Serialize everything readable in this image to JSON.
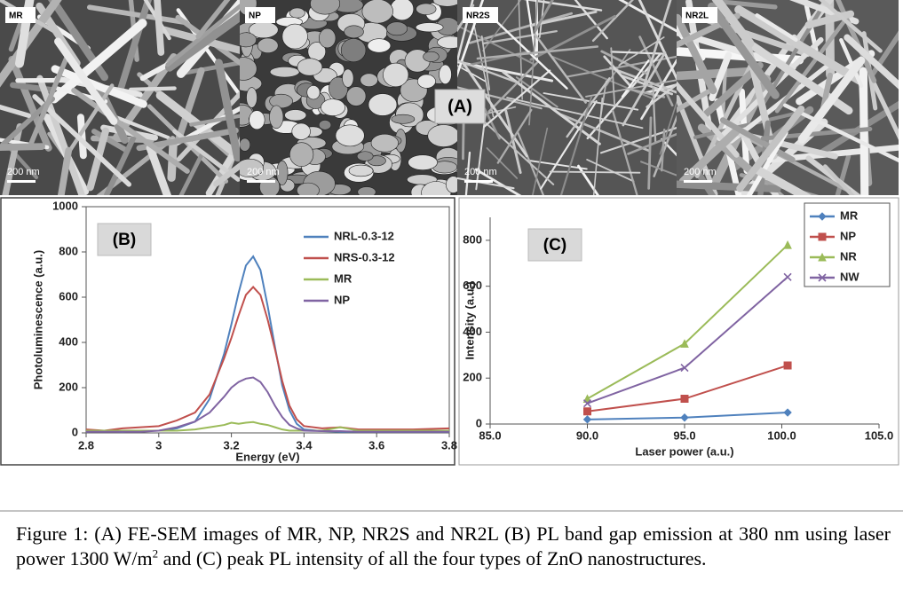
{
  "sem_images": [
    {
      "label": "MR",
      "scale_bar": "200 nm"
    },
    {
      "label": "NP",
      "scale_bar": "200 nm"
    },
    {
      "label": "NR2S",
      "scale_bar": "200 nm"
    },
    {
      "label": "NR2L",
      "scale_bar": "200 nm"
    }
  ],
  "panel_a_label": "(A)",
  "chart_data": [
    {
      "type": "line",
      "title": "(B)",
      "x_label": "Energy (eV)",
      "y_label": "Photoluminescence (a.u.)",
      "x": [
        2.8,
        2.85,
        2.9,
        2.95,
        3.0,
        3.05,
        3.1,
        3.14,
        3.18,
        3.2,
        3.22,
        3.24,
        3.26,
        3.28,
        3.3,
        3.32,
        3.34,
        3.36,
        3.38,
        3.4,
        3.45,
        3.5,
        3.55,
        3.6,
        3.7,
        3.8
      ],
      "series": [
        {
          "name": "NRL-0.3-12",
          "color": "#4f81bd",
          "values": [
            5,
            8,
            5,
            10,
            10,
            20,
            50,
            150,
            350,
            480,
            620,
            740,
            780,
            720,
            560,
            380,
            210,
            100,
            40,
            15,
            8,
            5,
            5,
            5,
            5,
            5
          ]
        },
        {
          "name": "NRS-0.3-12",
          "color": "#c0504d",
          "values": [
            15,
            10,
            20,
            25,
            30,
            55,
            90,
            170,
            330,
            420,
            520,
            610,
            645,
            610,
            500,
            370,
            230,
            120,
            60,
            30,
            20,
            25,
            15,
            15,
            15,
            20
          ]
        },
        {
          "name": "MR",
          "color": "#9bbb59",
          "values": [
            10,
            10,
            10,
            10,
            10,
            10,
            15,
            25,
            35,
            45,
            40,
            45,
            48,
            40,
            35,
            25,
            15,
            10,
            10,
            10,
            10,
            25,
            10,
            10,
            10,
            10
          ]
        },
        {
          "name": "NP",
          "color": "#8064a2",
          "values": [
            5,
            5,
            5,
            5,
            10,
            25,
            50,
            90,
            160,
            200,
            225,
            240,
            245,
            225,
            180,
            120,
            70,
            35,
            20,
            10,
            8,
            8,
            5,
            5,
            5,
            5
          ]
        }
      ],
      "xlim": [
        2.8,
        3.8
      ],
      "xticks": [
        2.8,
        3,
        3.2,
        3.4,
        3.6,
        3.8
      ],
      "ylim": [
        0,
        1000
      ],
      "yticks": [
        0,
        200,
        400,
        600,
        800,
        1000
      ],
      "grid": false,
      "legend": "upper right"
    },
    {
      "type": "line",
      "title": "(C)",
      "x_label": "Laser power (a.u.)",
      "y_label": "Intensity (a.u.)",
      "x": [
        90,
        95,
        100.3
      ],
      "series": [
        {
          "name": "MR",
          "color": "#4f81bd",
          "marker": "diamond",
          "values": [
            20,
            28,
            50
          ]
        },
        {
          "name": "NP",
          "color": "#c0504d",
          "marker": "square",
          "values": [
            55,
            110,
            255
          ]
        },
        {
          "name": "NR",
          "color": "#9bbb59",
          "marker": "triangle",
          "values": [
            110,
            350,
            780
          ]
        },
        {
          "name": "NW",
          "color": "#8064a2",
          "marker": "x",
          "values": [
            90,
            245,
            640
          ]
        }
      ],
      "xlim": [
        85,
        105
      ],
      "xticks": [
        {
          "value": 85,
          "label": "85.0"
        },
        {
          "value": 90,
          "label": "90.0"
        },
        {
          "value": 95,
          "label": "95.0"
        },
        {
          "value": 100,
          "label": "100.0"
        },
        {
          "value": 105,
          "label": "105.0"
        }
      ],
      "ylim": [
        0,
        900
      ],
      "yticks": [
        0,
        200,
        400,
        600,
        800
      ],
      "grid": false,
      "legend": "upper right"
    }
  ],
  "caption": {
    "text_before": "Figure 1: (A) FE-SEM images of MR, NP, NR2S and NR2L (B) PL band gap emission at 380 nm using laser power 1300 W/m",
    "superscript": "2",
    "text_after": " and (C) peak PL intensity of all the four types of ZnO nanostructures."
  }
}
